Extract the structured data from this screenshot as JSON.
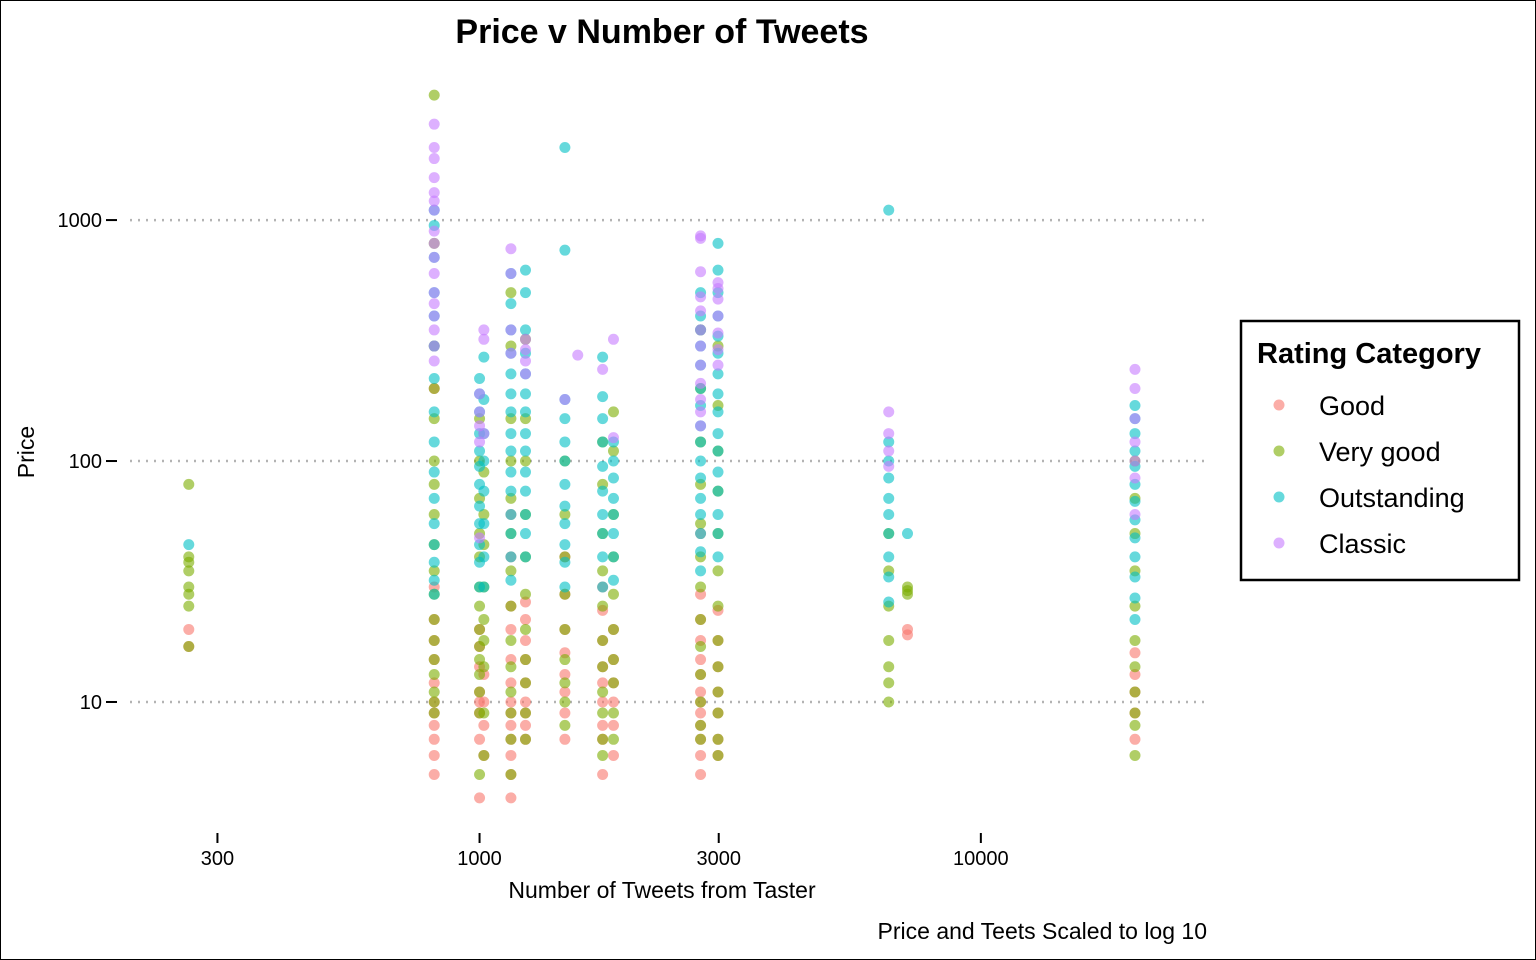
{
  "chart_data": {
    "type": "scatter",
    "title": "Price v Number of Tweets",
    "xlabel": "Number of Tweets from Taster",
    "ylabel": "Price",
    "caption": "Price and Teets Scaled to log 10",
    "x_scale": "log10",
    "y_scale": "log10",
    "xlim": [
      190,
      28000
    ],
    "ylim": [
      3.3,
      4000
    ],
    "x_ticks": [
      300,
      1000,
      3000,
      10000
    ],
    "x_tick_labels": [
      "300",
      "1000",
      "3000",
      "10000"
    ],
    "y_ticks": [
      10,
      100,
      1000
    ],
    "y_tick_labels": [
      "10",
      "100",
      "1000"
    ],
    "grid": {
      "horizontal_major": true,
      "vertical": false,
      "style": "dotted"
    },
    "legend": {
      "title": "Rating Category",
      "position": "right",
      "entries": [
        "Good",
        "Very good",
        "Outstanding",
        "Classic"
      ]
    },
    "series": [
      {
        "name": "Good",
        "color": "#F8766D",
        "columns": [
          {
            "x": 263,
            "y": [
              20,
              17
            ]
          },
          {
            "x": 812,
            "y": [
              5,
              6,
              7,
              8,
              9,
              10,
              12,
              15,
              18,
              22,
              30,
              200
            ]
          },
          {
            "x": 1000,
            "y": [
              4,
              7,
              9,
              10,
              11,
              14,
              17,
              20
            ]
          },
          {
            "x": 1020,
            "y": [
              6,
              8,
              10,
              13
            ]
          },
          {
            "x": 1155,
            "y": [
              4,
              5,
              6,
              7,
              8,
              9,
              10,
              12,
              15,
              20,
              25,
              40,
              60
            ]
          },
          {
            "x": 1235,
            "y": [
              7,
              8,
              9,
              10,
              12,
              15,
              18,
              22,
              26
            ]
          },
          {
            "x": 1480,
            "y": [
              7,
              9,
              11,
              13,
              16,
              20,
              28,
              40
            ]
          },
          {
            "x": 1760,
            "y": [
              5,
              7,
              8,
              10,
              12,
              14,
              18,
              24,
              30
            ]
          },
          {
            "x": 1850,
            "y": [
              6,
              8,
              10,
              12,
              15,
              20
            ]
          },
          {
            "x": 2760,
            "y": [
              5,
              6,
              7,
              8,
              9,
              10,
              11,
              13,
              15,
              18,
              22,
              28,
              50
            ]
          },
          {
            "x": 2990,
            "y": [
              6,
              7,
              9,
              11,
              14,
              18,
              24
            ]
          },
          {
            "x": 7140,
            "y": [
              20,
              19
            ]
          },
          {
            "x": 20300,
            "y": [
              7,
              9,
              11,
              13,
              16
            ]
          }
        ]
      },
      {
        "name": "Very good",
        "color": "#7CAE00",
        "columns": [
          {
            "x": 263,
            "y": [
              80,
              40,
              38,
              35,
              30,
              28,
              25,
              17
            ]
          },
          {
            "x": 812,
            "y": [
              3300,
              800,
              300,
              200,
              150,
              100,
              80,
              60,
              45,
              35,
              28,
              22,
              18,
              15,
              13,
              11,
              10,
              9
            ]
          },
          {
            "x": 1000,
            "y": [
              150,
              100,
              70,
              50,
              40,
              30,
              25,
              20,
              17,
              15,
              13,
              11,
              9,
              5
            ]
          },
          {
            "x": 1020,
            "y": [
              90,
              60,
              45,
              30,
              22,
              18,
              14,
              9,
              6
            ]
          },
          {
            "x": 1155,
            "y": [
              500,
              300,
              150,
              100,
              70,
              50,
              35,
              25,
              18,
              14,
              11,
              9,
              7,
              5
            ]
          },
          {
            "x": 1235,
            "y": [
              320,
              150,
              100,
              60,
              40,
              28,
              20,
              15,
              12,
              9,
              7
            ]
          },
          {
            "x": 1480,
            "y": [
              100,
              60,
              40,
              28,
              20,
              15,
              12,
              10,
              8
            ]
          },
          {
            "x": 1760,
            "y": [
              120,
              80,
              50,
              35,
              25,
              18,
              14,
              11,
              9,
              7,
              6
            ]
          },
          {
            "x": 1850,
            "y": [
              160,
              110,
              60,
              40,
              28,
              20,
              15,
              12,
              9,
              7
            ]
          },
          {
            "x": 2760,
            "y": [
              350,
              200,
              120,
              80,
              55,
              40,
              30,
              22,
              17,
              13,
              10,
              8,
              7
            ]
          },
          {
            "x": 2990,
            "y": [
              300,
              170,
              110,
              75,
              50,
              35,
              25,
              18,
              14,
              11,
              9,
              7,
              6
            ]
          },
          {
            "x": 6550,
            "y": [
              50,
              35,
              25,
              18,
              14,
              12,
              10
            ]
          },
          {
            "x": 7140,
            "y": [
              30,
              29,
              28
            ]
          },
          {
            "x": 20300,
            "y": [
              100,
              70,
              50,
              35,
              25,
              18,
              14,
              11,
              9,
              8,
              6
            ]
          }
        ]
      },
      {
        "name": "Outstanding",
        "color": "#00BFC4",
        "columns": [
          {
            "x": 263,
            "y": [
              45
            ]
          },
          {
            "x": 812,
            "y": [
              1100,
              950,
              700,
              500,
              400,
              300,
              220,
              160,
              120,
              90,
              70,
              55,
              45,
              38,
              32,
              28
            ]
          },
          {
            "x": 1000,
            "y": [
              220,
              190,
              160,
              130,
              110,
              95,
              80,
              65,
              55,
              45,
              38,
              30
            ]
          },
          {
            "x": 1020,
            "y": [
              270,
              180,
              130,
              100,
              75,
              55,
              40,
              30
            ]
          },
          {
            "x": 1155,
            "y": [
              600,
              450,
              350,
              280,
              230,
              190,
              160,
              130,
              110,
              90,
              75,
              60,
              50,
              40,
              32
            ]
          },
          {
            "x": 1235,
            "y": [
              620,
              500,
              350,
              280,
              230,
              190,
              160,
              130,
              110,
              90,
              75,
              60,
              50,
              40
            ]
          },
          {
            "x": 1480,
            "y": [
              2000,
              750,
              180,
              150,
              120,
              100,
              80,
              65,
              55,
              45,
              38,
              30
            ]
          },
          {
            "x": 1760,
            "y": [
              270,
              185,
              150,
              120,
              95,
              75,
              60,
              50,
              40,
              30
            ]
          },
          {
            "x": 1850,
            "y": [
              120,
              100,
              85,
              70,
              60,
              50,
              40,
              32
            ]
          },
          {
            "x": 2760,
            "y": [
              500,
              400,
              350,
              300,
              250,
              200,
              170,
              140,
              120,
              100,
              85,
              70,
              60,
              50,
              42,
              35
            ]
          },
          {
            "x": 2990,
            "y": [
              800,
              620,
              500,
              400,
              330,
              280,
              230,
              190,
              160,
              130,
              110,
              90,
              75,
              60,
              50,
              40
            ]
          },
          {
            "x": 6550,
            "y": [
              1100,
              120,
              100,
              85,
              70,
              60,
              50,
              40,
              33,
              26
            ]
          },
          {
            "x": 7140,
            "y": [
              50
            ]
          },
          {
            "x": 20300,
            "y": [
              170,
              150,
              130,
              110,
              95,
              80,
              68,
              57,
              48,
              40,
              33,
              27,
              22
            ]
          }
        ]
      },
      {
        "name": "Classic",
        "color": "#C77CFF",
        "columns": [
          {
            "x": 812,
            "y": [
              2500,
              2000,
              1800,
              1500,
              1300,
              1200,
              1100,
              900,
              800,
              700,
              600,
              500,
              450,
              400,
              350,
              300,
              260
            ]
          },
          {
            "x": 1000,
            "y": [
              190,
              160,
              140,
              120,
              48
            ]
          },
          {
            "x": 1020,
            "y": [
              350,
              320,
              130
            ]
          },
          {
            "x": 1155,
            "y": [
              760,
              600,
              350,
              280
            ]
          },
          {
            "x": 1235,
            "y": [
              320,
              290,
              260,
              230
            ]
          },
          {
            "x": 1480,
            "y": [
              180
            ]
          },
          {
            "x": 1570,
            "y": [
              275
            ]
          },
          {
            "x": 1760,
            "y": [
              240
            ]
          },
          {
            "x": 1850,
            "y": [
              320,
              125
            ]
          },
          {
            "x": 2760,
            "y": [
              860,
              840,
              610,
              480,
              420,
              350,
              300,
              250,
              210,
              180,
              160,
              140
            ]
          },
          {
            "x": 2990,
            "y": [
              550,
              520,
              470,
              400,
              340,
              290,
              250
            ]
          },
          {
            "x": 6550,
            "y": [
              160,
              130,
              110,
              95
            ]
          },
          {
            "x": 20300,
            "y": [
              240,
              200,
              150,
              120,
              100,
              85,
              60
            ]
          }
        ]
      }
    ]
  }
}
